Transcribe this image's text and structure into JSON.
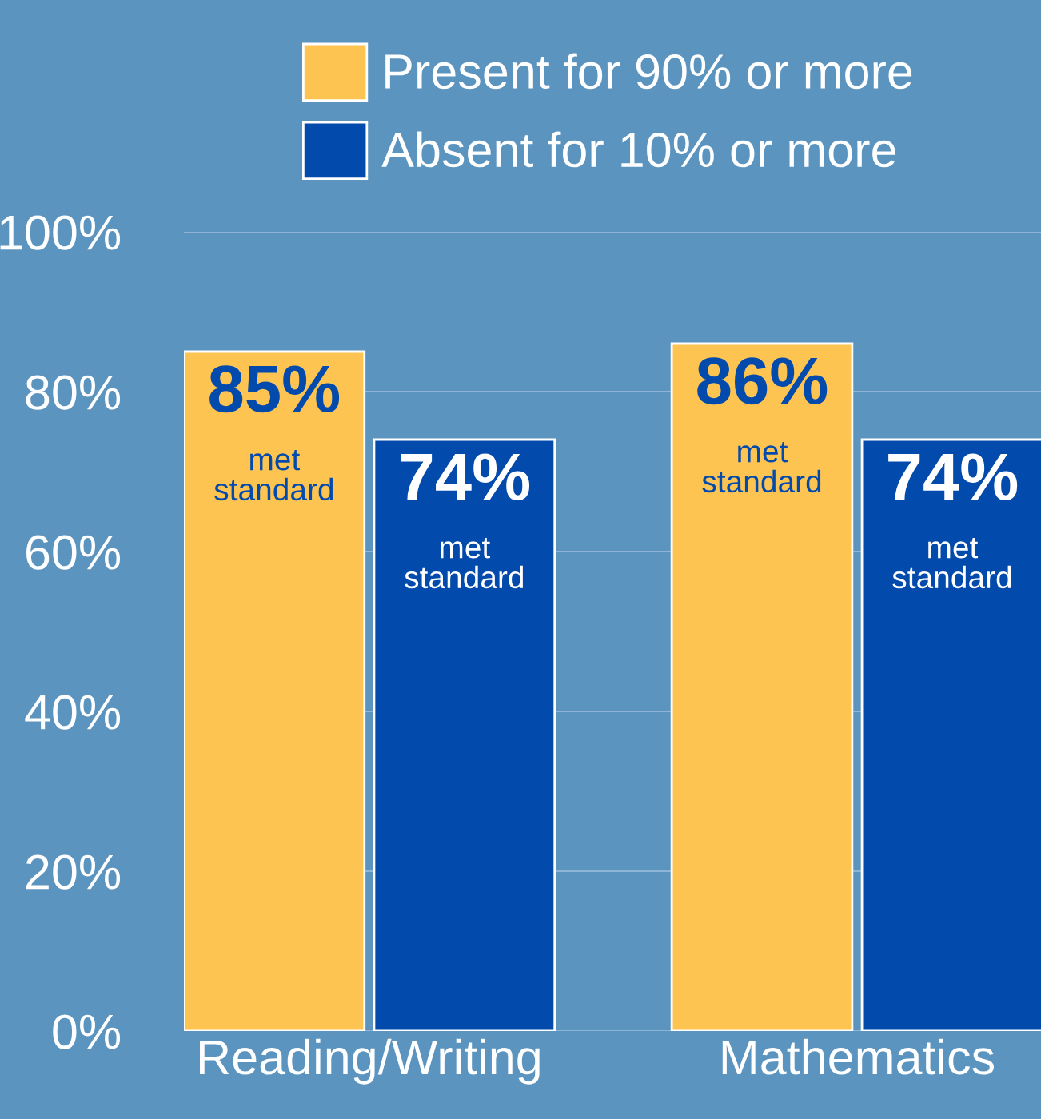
{
  "chart_data": {
    "type": "bar",
    "categories": [
      "Reading/Writing",
      "Mathematics"
    ],
    "series": [
      {
        "name": "Present for 90% or more",
        "color": "#fdc452",
        "values": [
          85,
          86
        ],
        "value_labels": [
          "85%\nmet\nstandard",
          "86%\nmet\nstandard"
        ]
      },
      {
        "name": "Absent for 10% or more",
        "color": "#034aad",
        "values": [
          74,
          74
        ],
        "value_labels": [
          "74%\nmet\nstandard",
          "74%\nmet\nstandard"
        ]
      }
    ],
    "ylim": [
      0,
      100
    ],
    "yticks": [
      {
        "value": 0,
        "label": "0%"
      },
      {
        "value": 20,
        "label": "20%"
      },
      {
        "value": 40,
        "label": "40%"
      },
      {
        "value": 60,
        "label": "60%"
      },
      {
        "value": 80,
        "label": "80%"
      },
      {
        "value": 100,
        "label": "100%"
      }
    ],
    "grid": "y",
    "legend": "top right"
  }
}
